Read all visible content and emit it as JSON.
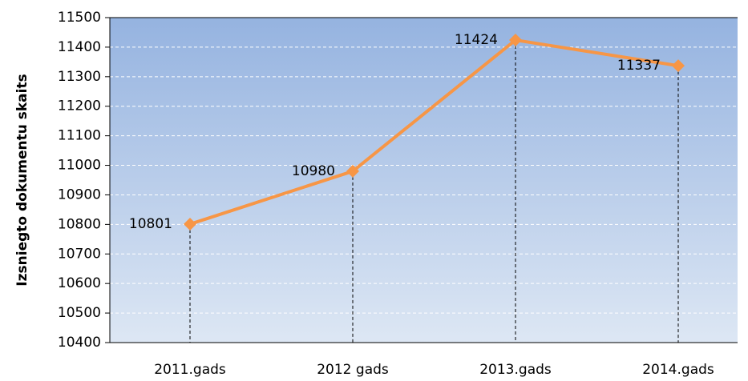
{
  "chart_data": {
    "type": "line",
    "ylabel": "Izsniegto dokumentu skaits",
    "categories": [
      "2011.gads",
      "2012 gads",
      "2013.gads",
      "2014.gads"
    ],
    "series": [
      {
        "name": "Izsniegto dokumentu skaits",
        "color": "#f79646",
        "values": [
          10801,
          10980,
          11424,
          11337
        ]
      }
    ],
    "ylim": [
      10400,
      11500
    ],
    "yticks": [
      10400,
      10500,
      10600,
      10700,
      10800,
      10900,
      11000,
      11100,
      11200,
      11300,
      11400,
      11500
    ],
    "grid": true,
    "drop_lines": true,
    "data_labels": true
  }
}
